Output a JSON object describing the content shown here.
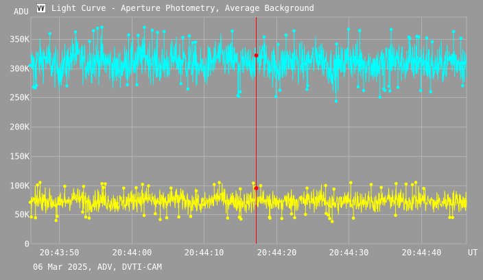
{
  "window": {
    "title": "Light Curve - Aperture Photometry, Average Background",
    "icon": "light-curve-app-icon"
  },
  "footer": {
    "text": "06 Mar 2025, ADV, DVTI-CAM"
  },
  "colors": {
    "background": "#999999",
    "grid": "#b3b3b3",
    "text": "#ffffff",
    "cursor": "#ff0000",
    "series1": "#00ffff",
    "series2": "#ffff00"
  },
  "chart_data": {
    "type": "scatter",
    "ylabel": "ADU",
    "xlabel": "UT",
    "ylim": [
      0,
      387500
    ],
    "xlim": [
      "20:43:46.1",
      "20:44:46.3"
    ],
    "y_ticks": [
      0,
      50000,
      100000,
      150000,
      200000,
      250000,
      300000,
      350000
    ],
    "y_tick_labels": [
      "0",
      "50K",
      "100K",
      "150K",
      "200K",
      "250K",
      "300K",
      "350K"
    ],
    "x_ticks": [
      "20:43:50",
      "20:44:00",
      "20:44:10",
      "20:44:20",
      "20:44:30",
      "20:44:40"
    ],
    "grid": true,
    "series": [
      {
        "color": "#00ffff",
        "marker": "dot-with-stem",
        "typical_range": [
          265000,
          355000
        ],
        "mean": 310000,
        "samples": [
          [
            "20:43:46",
            305000
          ],
          [
            "20:43:48",
            318000
          ],
          [
            "20:43:50",
            296000
          ],
          [
            "20:43:52",
            322000
          ],
          [
            "20:43:54",
            308000
          ],
          [
            "20:43:56",
            315000
          ],
          [
            "20:43:58",
            299000
          ],
          [
            "20:44:00",
            312000
          ],
          [
            "20:44:02",
            320000
          ],
          [
            "20:44:04",
            303000
          ],
          [
            "20:44:06",
            317000
          ],
          [
            "20:44:08",
            309000
          ],
          [
            "20:44:10",
            298000
          ],
          [
            "20:44:12",
            321000
          ],
          [
            "20:44:14",
            311000
          ],
          [
            "20:44:16",
            306000
          ],
          [
            "20:44:18",
            319000
          ],
          [
            "20:44:20",
            301000
          ],
          [
            "20:44:22",
            314000
          ],
          [
            "20:44:24",
            308000
          ],
          [
            "20:44:26",
            322000
          ],
          [
            "20:44:28",
            297000
          ],
          [
            "20:44:30",
            316000
          ],
          [
            "20:44:32",
            310000
          ],
          [
            "20:44:34",
            304000
          ],
          [
            "20:44:36",
            318000
          ],
          [
            "20:44:38",
            307000
          ],
          [
            "20:44:40",
            313000
          ],
          [
            "20:44:42",
            300000
          ],
          [
            "20:44:44",
            315000
          ],
          [
            "20:44:46",
            309000
          ]
        ]
      },
      {
        "color": "#ffff00",
        "marker": "dot-with-stem",
        "typical_range": [
          50000,
          100000
        ],
        "mean": 73000,
        "samples": [
          [
            "20:43:46",
            71000
          ],
          [
            "20:43:48",
            76000
          ],
          [
            "20:43:50",
            68000
          ],
          [
            "20:43:52",
            79000
          ],
          [
            "20:43:54",
            72000
          ],
          [
            "20:43:56",
            75000
          ],
          [
            "20:43:58",
            69000
          ],
          [
            "20:44:00",
            74000
          ],
          [
            "20:44:02",
            78000
          ],
          [
            "20:44:04",
            70000
          ],
          [
            "20:44:06",
            77000
          ],
          [
            "20:44:08",
            72000
          ],
          [
            "20:44:10",
            67000
          ],
          [
            "20:44:12",
            80000
          ],
          [
            "20:44:14",
            73000
          ],
          [
            "20:44:16",
            71000
          ],
          [
            "20:44:18",
            76000
          ],
          [
            "20:44:20",
            69000
          ],
          [
            "20:44:22",
            75000
          ],
          [
            "20:44:24",
            72000
          ],
          [
            "20:44:26",
            78000
          ],
          [
            "20:44:28",
            68000
          ],
          [
            "20:44:30",
            74000
          ],
          [
            "20:44:32",
            73000
          ],
          [
            "20:44:34",
            70000
          ],
          [
            "20:44:36",
            77000
          ],
          [
            "20:44:38",
            71000
          ],
          [
            "20:44:40",
            75000
          ],
          [
            "20:44:42",
            69000
          ],
          [
            "20:44:44",
            74000
          ],
          [
            "20:44:46",
            72000
          ]
        ]
      }
    ],
    "cursor": {
      "time": "20:44:17.2",
      "values": [
        322000,
        95000
      ]
    }
  }
}
